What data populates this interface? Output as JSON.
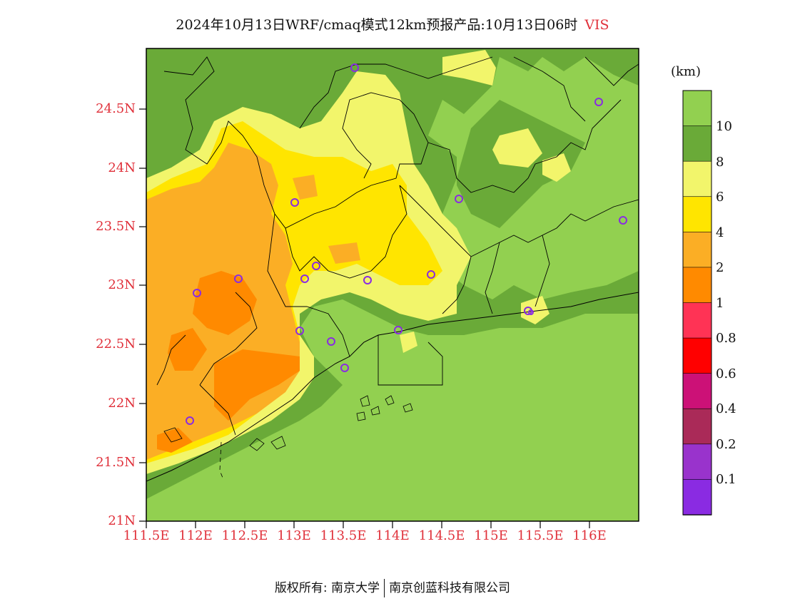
{
  "title": {
    "text": "2024年10月13日WRF/cmaq模式12km预报产品:10月13日06时",
    "variable": "VIS"
  },
  "axes": {
    "lat_labels": [
      "24.5N",
      "24N",
      "23.5N",
      "23N",
      "22.5N",
      "22N",
      "21.5N",
      "21N"
    ],
    "lon_labels": [
      "111.5E",
      "112E",
      "112.5E",
      "113E",
      "113.5E",
      "114E",
      "114.5E",
      "115E",
      "115.5E",
      "116E"
    ]
  },
  "legend": {
    "unit": "(km)",
    "labels": [
      "10",
      "8",
      "6",
      "4",
      "2",
      "1",
      "0.8",
      "0.6",
      "0.4",
      "0.2",
      "0.1"
    ],
    "colors": [
      "#92d050",
      "#6aaa38",
      "#f2f56b",
      "#ffe500",
      "#fbae25",
      "#ff8a00",
      "#ff3355",
      "#ff0000",
      "#cc1177",
      "#aa2a58",
      "#9933cc",
      "#8a2be2"
    ]
  },
  "stations": {
    "marker_color": "#8a2be2",
    "count": 18
  },
  "footer": {
    "left": "版权所有: 南京大学",
    "right": "南京创蓝科技有限公司"
  }
}
